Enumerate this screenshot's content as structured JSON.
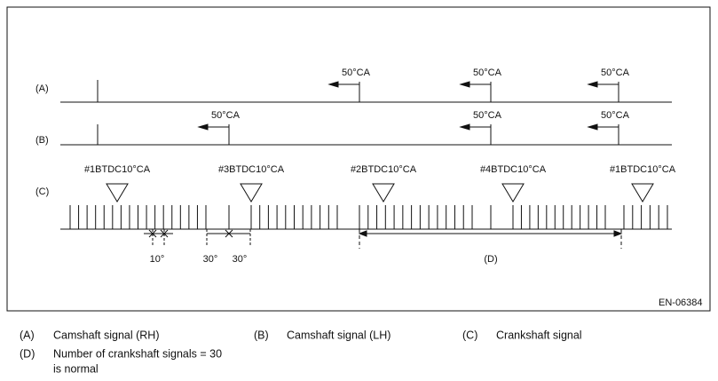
{
  "diagram": {
    "row_labels": [
      "(A)",
      "(B)",
      "(C)"
    ],
    "cam_rh_arrows": [
      "50°CA",
      "50°CA",
      "50°CA"
    ],
    "cam_lh_arrows": [
      "50°CA",
      "50°CA",
      "50°CA"
    ],
    "tdc_labels": [
      "#1BTDC10°CA",
      "#3BTDC10°CA",
      "#2BTDC10°CA",
      "#4BTDC10°CA",
      "#1BTDC10°CA"
    ],
    "angle_labels": [
      "10°",
      "30°",
      "30°"
    ],
    "span_label": "(D)",
    "figure_code": "EN-06384"
  },
  "legend": [
    {
      "key": "(A)",
      "text": "Camshaft signal (RH)"
    },
    {
      "key": "(B)",
      "text": "Camshaft signal (LH)"
    },
    {
      "key": "(C)",
      "text": "Crankshaft signal"
    },
    {
      "key": "(D)",
      "text": [
        "Number of crankshaft signals = 30",
        "is normal"
      ]
    }
  ]
}
